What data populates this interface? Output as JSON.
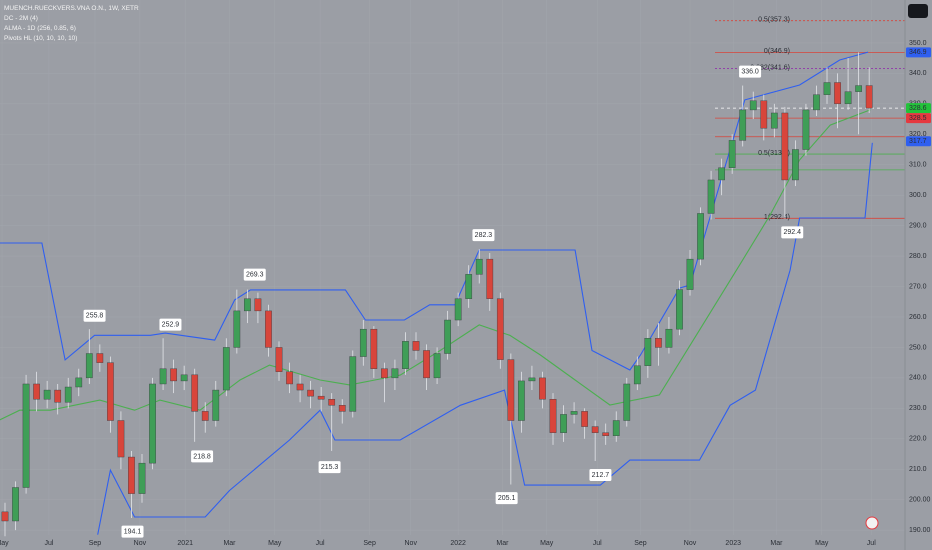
{
  "chart_data": {
    "type": "candlestick",
    "title": "MUENCH.RUECKVERS.VNA O.N., 1W, XETR",
    "indicators": [
      "DC - 2M (4)",
      "ALMA - 1D (256, 0.85, 6)",
      "Pivots HL (10, 10, 10, 10)"
    ],
    "up_color": "#3f9e57",
    "down_color": "#d8453b",
    "wick_color": "#e4e6ea",
    "background": "#9b9ea5",
    "xlim": [
      -0.474,
      85.4
    ],
    "ylim": [
      188.4,
      364.1
    ],
    "yticks": [
      {
        "value": 190,
        "label": "190.00"
      },
      {
        "value": 200,
        "label": "200.00"
      },
      {
        "value": 210,
        "label": "210.0"
      },
      {
        "value": 220,
        "label": "220.0"
      },
      {
        "value": 230,
        "label": "230.0"
      },
      {
        "value": 240,
        "label": "240.0"
      },
      {
        "value": 250,
        "label": "250.0"
      },
      {
        "value": 260,
        "label": "260.0"
      },
      {
        "value": 270,
        "label": "270.0"
      },
      {
        "value": 280,
        "label": "280.0"
      },
      {
        "value": 290,
        "label": "290.0"
      },
      {
        "value": 300,
        "label": "300.0"
      },
      {
        "value": 310,
        "label": "310.0"
      },
      {
        "value": 320,
        "label": "320.0"
      },
      {
        "value": 330,
        "label": "330.0"
      },
      {
        "value": 340,
        "label": "340.0"
      },
      {
        "value": 350,
        "label": "350.0"
      }
    ],
    "xticks": [
      {
        "value": -0.28,
        "label": "May"
      },
      {
        "value": 4.17,
        "label": "Jul"
      },
      {
        "value": 8.54,
        "label": "Sep"
      },
      {
        "value": 12.8,
        "label": "Nov"
      },
      {
        "value": 17.1,
        "label": "2021"
      },
      {
        "value": 21.3,
        "label": "Mar"
      },
      {
        "value": 25.6,
        "label": "May"
      },
      {
        "value": 29.9,
        "label": "Jul"
      },
      {
        "value": 34.6,
        "label": "Sep"
      },
      {
        "value": 38.5,
        "label": "Nov"
      },
      {
        "value": 43,
        "label": "2022"
      },
      {
        "value": 47.2,
        "label": "Mar"
      },
      {
        "value": 51.4,
        "label": "May"
      },
      {
        "value": 56.2,
        "label": "Jul"
      },
      {
        "value": 60.3,
        "label": "Sep"
      },
      {
        "value": 65,
        "label": "Nov"
      },
      {
        "value": 69.1,
        "label": "2023"
      },
      {
        "value": 73.2,
        "label": "Mar"
      },
      {
        "value": 77.5,
        "label": "May"
      },
      {
        "value": 82.2,
        "label": "Jul"
      }
    ],
    "candles": [
      [
        196,
        199,
        188,
        193
      ],
      [
        193,
        206,
        190,
        204
      ],
      [
        204,
        241,
        202,
        238
      ],
      [
        238,
        242,
        229,
        233
      ],
      [
        233,
        239,
        230,
        236
      ],
      [
        236,
        238,
        228,
        232
      ],
      [
        232,
        240,
        230,
        237
      ],
      [
        237,
        243,
        234,
        240
      ],
      [
        240,
        256,
        238,
        248
      ],
      [
        248,
        251,
        242,
        245
      ],
      [
        245,
        247,
        222,
        226
      ],
      [
        226,
        229,
        210,
        214
      ],
      [
        214,
        216,
        194,
        202
      ],
      [
        202,
        215,
        199,
        212
      ],
      [
        212,
        240,
        210,
        238
      ],
      [
        238,
        253,
        236,
        243
      ],
      [
        243,
        246,
        235,
        239
      ],
      [
        239,
        244,
        236,
        241
      ],
      [
        241,
        243,
        219,
        229
      ],
      [
        229,
        232,
        222,
        226
      ],
      [
        226,
        239,
        224,
        236
      ],
      [
        236,
        253,
        234,
        250
      ],
      [
        250,
        269,
        248,
        262
      ],
      [
        262,
        269,
        258,
        266
      ],
      [
        266,
        268,
        258,
        262
      ],
      [
        262,
        264,
        247,
        250
      ],
      [
        250,
        252,
        239,
        242
      ],
      [
        242,
        245,
        235,
        238
      ],
      [
        238,
        241,
        232,
        236
      ],
      [
        236,
        239,
        230,
        234
      ],
      [
        234,
        237,
        229,
        233
      ],
      [
        233,
        235,
        216,
        231
      ],
      [
        231,
        233,
        225,
        229
      ],
      [
        229,
        249,
        227,
        247
      ],
      [
        247,
        259,
        244,
        256
      ],
      [
        256,
        257,
        240,
        243
      ],
      [
        243,
        245,
        232,
        240
      ],
      [
        240,
        246,
        236,
        243
      ],
      [
        243,
        255,
        241,
        252
      ],
      [
        252,
        255,
        246,
        249
      ],
      [
        249,
        251,
        236,
        240
      ],
      [
        240,
        250,
        238,
        248
      ],
      [
        248,
        262,
        246,
        259
      ],
      [
        259,
        268,
        257,
        266
      ],
      [
        266,
        277,
        263,
        274
      ],
      [
        274,
        282.3,
        271,
        279
      ],
      [
        279,
        281,
        262,
        266
      ],
      [
        266,
        268,
        243,
        246
      ],
      [
        246,
        248,
        205,
        226
      ],
      [
        226,
        242,
        222,
        239
      ],
      [
        239,
        244,
        236,
        240
      ],
      [
        240,
        242,
        230,
        233
      ],
      [
        233,
        235,
        218,
        222
      ],
      [
        222,
        231,
        219,
        228
      ],
      [
        228,
        232,
        225,
        229
      ],
      [
        229,
        230,
        220,
        224
      ],
      [
        224,
        226,
        212.7,
        222
      ],
      [
        222,
        225,
        218,
        221
      ],
      [
        221,
        229,
        219,
        226
      ],
      [
        226,
        240,
        224,
        238
      ],
      [
        238,
        247,
        236,
        244
      ],
      [
        244,
        256,
        240,
        253
      ],
      [
        253,
        258,
        244,
        250
      ],
      [
        250,
        260,
        248,
        256
      ],
      [
        256,
        272,
        254,
        269
      ],
      [
        269,
        282,
        267,
        279
      ],
      [
        279,
        296,
        277,
        294
      ],
      [
        294,
        308,
        292,
        305
      ],
      [
        305,
        312,
        300,
        309
      ],
      [
        309,
        320,
        307,
        318
      ],
      [
        318,
        336,
        316,
        328
      ],
      [
        328,
        334,
        325,
        331
      ],
      [
        331,
        333,
        318,
        322
      ],
      [
        322,
        330,
        319,
        327
      ],
      [
        327,
        329,
        292.4,
        305
      ],
      [
        305,
        318,
        303,
        315
      ],
      [
        315,
        330,
        313,
        328
      ],
      [
        328,
        336,
        326,
        333
      ],
      [
        333,
        342,
        330,
        337
      ],
      [
        337,
        340,
        322,
        330
      ],
      [
        330,
        345,
        328,
        334
      ],
      [
        334,
        346.9,
        320,
        336
      ],
      [
        336,
        342,
        327,
        328.6
      ]
    ],
    "lines": [
      {
        "color": "#2f5ff0",
        "x": [
          -0.5,
          3.5,
          5.7,
          8.5,
          13.8,
          15.2,
          19.9,
          21.8,
          23.3,
          32.3,
          34.2,
          37.9,
          40.3,
          42.7,
          45,
          54.1,
          55.7,
          59.3,
          60.3,
          64,
          65,
          70.2,
          75.4,
          79.2,
          81.9
        ],
        "values": [
          284.3,
          284.3,
          245.9,
          254,
          254,
          254.7,
          252.4,
          265.6,
          268.9,
          268.9,
          259,
          259,
          264,
          264,
          282,
          282,
          249,
          242.6,
          247.5,
          269.5,
          270.5,
          331.3,
          336.2,
          344.4,
          347
        ]
      },
      {
        "color": "#2f5ff0",
        "x": [
          8.8,
          10,
          12.3,
          12.8,
          19,
          21.3,
          27,
          29.9,
          31.3,
          33.2,
          37.5,
          43.2,
          47.4,
          49.3,
          56.5,
          59.3,
          65.9,
          68.8,
          71.2,
          74.5,
          75.4,
          81.6,
          82.3
        ],
        "values": [
          188.5,
          209.7,
          194.3,
          194.3,
          194.3,
          203,
          219.6,
          229.4,
          219.6,
          219.6,
          219.6,
          231,
          236,
          204.8,
          204.8,
          213,
          213,
          231,
          236,
          275.4,
          292.5,
          292.5,
          317.2
        ]
      },
      {
        "color": "#4caf50",
        "x": [
          -0.5,
          1.4,
          4.3,
          9,
          12.3,
          14.7,
          18.5,
          22.3,
          25.1,
          29.9,
          32.7,
          37.5,
          41.3,
          45,
          47.9,
          50.8,
          54.1,
          57.4,
          62.1,
          65.9,
          69.7,
          72.6,
          75.4,
          78.3,
          82.1
        ],
        "values": [
          226.2,
          229.4,
          229.4,
          232.7,
          229.4,
          232.7,
          229.4,
          239.3,
          244.2,
          239.3,
          237.7,
          240.9,
          249,
          257.4,
          254,
          247.5,
          239.3,
          231.1,
          234.4,
          255.7,
          277,
          293.5,
          311.6,
          323,
          328
        ]
      }
    ],
    "levels": [
      {
        "value": 357.3,
        "label": "0.5(357.3)",
        "color": "#d8453b",
        "dash": "2,2"
      },
      {
        "value": 346.9,
        "label": "0(346.9)",
        "color": "#d8453b",
        "dash": ""
      },
      {
        "value": 341.6,
        "label": "0.382(341.6)",
        "color": "#8e24aa",
        "dash": "2,2"
      },
      {
        "value": 328.6,
        "color": "#ffffff",
        "dash": "3,3"
      },
      {
        "value": 325.3,
        "color": "#d8453b",
        "dash": ""
      },
      {
        "value": 319.2,
        "color": "#d8453b",
        "dash": ""
      },
      {
        "value": 313.5,
        "label": "0.5(313.5)",
        "color": "#4caf50",
        "dash": ""
      },
      {
        "value": 308.3,
        "color": "#4caf50",
        "dash": ""
      },
      {
        "value": 292.4,
        "label": "1(292.4)",
        "color": "#d8453b",
        "dash": ""
      }
    ],
    "pivots": [
      {
        "x": 8.5,
        "value": 255.8,
        "label": "255.8",
        "side": "high"
      },
      {
        "x": 15.7,
        "value": 252.9,
        "label": "252.9",
        "side": "high"
      },
      {
        "x": 23.7,
        "value": 269.3,
        "label": "269.3",
        "side": "high"
      },
      {
        "x": 45.4,
        "value": 282.3,
        "label": "282.3",
        "side": "high"
      },
      {
        "x": 70.7,
        "value": 336,
        "label": "336.0",
        "side": "high"
      },
      {
        "x": 12.1,
        "value": 194.1,
        "label": "194.1",
        "side": "low"
      },
      {
        "x": 18.7,
        "value": 218.8,
        "label": "218.8",
        "side": "low"
      },
      {
        "x": 30.8,
        "value": 215.3,
        "label": "215.3",
        "side": "low"
      },
      {
        "x": 47.6,
        "value": 205.1,
        "label": "205.1",
        "side": "low"
      },
      {
        "x": 56.5,
        "value": 212.7,
        "label": "212.7",
        "side": "low"
      },
      {
        "x": 74.7,
        "value": 292.4,
        "label": "292.4",
        "side": "low"
      }
    ],
    "price_tags": [
      {
        "value": 346.9,
        "label": "346.9",
        "color": "#2f5ff0"
      },
      {
        "value": 328.6,
        "label": "328.6",
        "color": "#22c33a"
      },
      {
        "value": 328.5,
        "label": "328.5",
        "color": "#e5393f"
      },
      {
        "value": 317.7,
        "label": "317.7",
        "color": "#2f5ff0"
      }
    ]
  }
}
